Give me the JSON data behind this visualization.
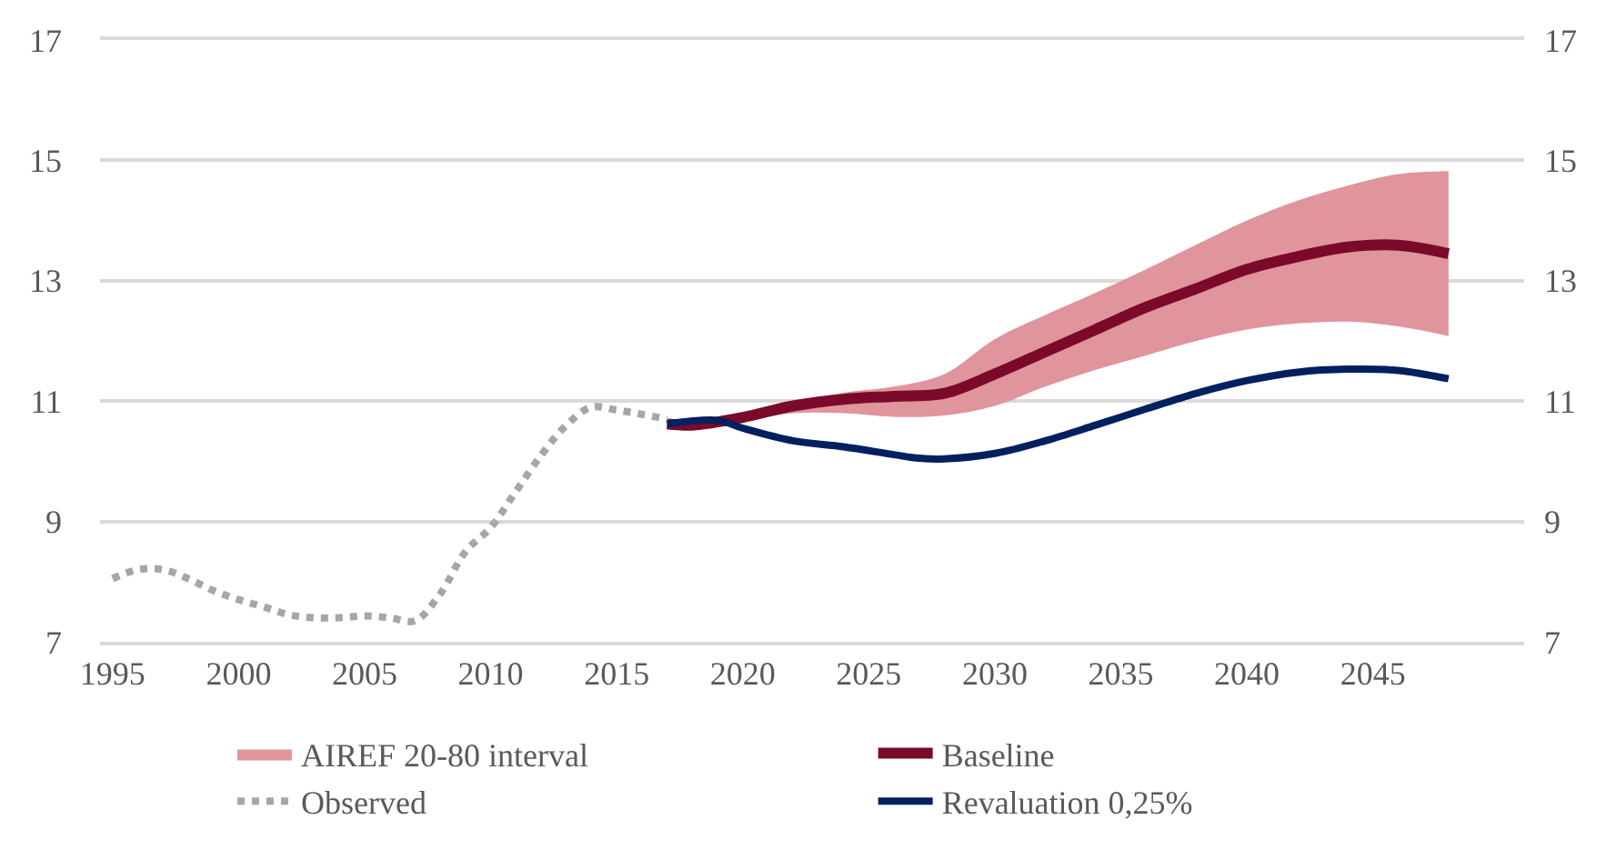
{
  "chart_data": {
    "type": "line",
    "xlim": [
      1994.5,
      2051
    ],
    "xticks": [
      1995,
      2000,
      2005,
      2010,
      2015,
      2020,
      2025,
      2030,
      2035,
      2040,
      2045
    ],
    "ylim": [
      7,
      17
    ],
    "yticks": [
      7,
      9,
      11,
      13,
      15,
      17
    ],
    "y2lim": [
      7,
      17
    ],
    "y2ticks": [
      7,
      9,
      11,
      13,
      15,
      17
    ],
    "grid": "y",
    "legend": "bottom",
    "series": [
      {
        "name": "AIREF 20-80 interval",
        "type": "area",
        "color": "#e0949c"
      },
      {
        "name": "Baseline",
        "color": "#7b0a2a",
        "line_style": "solid",
        "x": [
          2017,
          2018,
          2020,
          2022,
          2024,
          2026,
          2028,
          2030,
          2032,
          2034,
          2036,
          2038,
          2040,
          2042,
          2044,
          2046,
          2048
        ],
        "values": [
          10.62,
          10.6,
          10.73,
          10.92,
          11.03,
          11.08,
          11.13,
          11.45,
          11.82,
          12.19,
          12.56,
          12.87,
          13.19,
          13.4,
          13.56,
          13.59,
          13.45
        ],
        "lower": [
          10.6,
          10.58,
          10.7,
          10.8,
          10.8,
          10.74,
          10.76,
          10.92,
          11.24,
          11.52,
          11.76,
          12.0,
          12.19,
          12.29,
          12.32,
          12.24,
          12.08
        ],
        "upper": [
          10.64,
          10.62,
          10.76,
          10.97,
          11.14,
          11.24,
          11.45,
          12.03,
          12.43,
          12.8,
          13.19,
          13.6,
          14.0,
          14.33,
          14.58,
          14.77,
          14.82
        ]
      },
      {
        "name": "Observed",
        "color": "#a6a6a6",
        "line_style": "dotted",
        "x": [
          1995,
          1996,
          1997,
          1998,
          1999,
          2000,
          2001,
          2002,
          2003,
          2004,
          2005,
          2006,
          2007,
          2008,
          2009,
          2010,
          2011,
          2012,
          2013,
          2014,
          2015,
          2016,
          2017
        ],
        "values": [
          8.05,
          8.2,
          8.2,
          8.05,
          7.85,
          7.7,
          7.58,
          7.45,
          7.4,
          7.4,
          7.43,
          7.4,
          7.35,
          7.8,
          8.5,
          8.9,
          9.5,
          10.1,
          10.6,
          10.9,
          10.85,
          10.78,
          10.7
        ]
      },
      {
        "name": "Revaluation 0,25%",
        "color": "#002060",
        "line_style": "solid",
        "x": [
          2017,
          2019,
          2020,
          2022,
          2024,
          2026,
          2027,
          2028,
          2030,
          2032,
          2034,
          2036,
          2038,
          2040,
          2042,
          2044,
          2046,
          2048
        ],
        "values": [
          10.62,
          10.68,
          10.55,
          10.34,
          10.24,
          10.11,
          10.05,
          10.04,
          10.13,
          10.34,
          10.6,
          10.87,
          11.13,
          11.34,
          11.48,
          11.53,
          11.51,
          11.37
        ]
      }
    ]
  }
}
